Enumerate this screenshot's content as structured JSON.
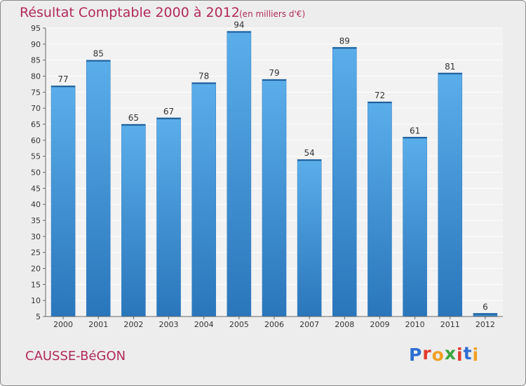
{
  "chart_data": {
    "type": "bar",
    "title": "Résultat Comptable 2000 à 2012",
    "subtitle": "(en milliers d'€)",
    "categories": [
      "2000",
      "2001",
      "2002",
      "2003",
      "2004",
      "2005",
      "2006",
      "2007",
      "2008",
      "2009",
      "2010",
      "2011",
      "2012"
    ],
    "values": [
      77,
      85,
      65,
      67,
      78,
      94,
      79,
      54,
      89,
      72,
      61,
      81,
      6
    ],
    "xlabel": "",
    "ylabel": "",
    "ylim": [
      5,
      95
    ],
    "yticks": [
      5,
      10,
      15,
      20,
      25,
      30,
      35,
      40,
      45,
      50,
      55,
      60,
      65,
      70,
      75,
      80,
      85,
      90,
      95
    ],
    "grid": true,
    "bar_color": "#3b8fd4",
    "title_color": "#b02a5a"
  },
  "commune": "CAUSSE-BéGON",
  "logo": {
    "letters": [
      "P",
      "r",
      "o",
      "x",
      "i",
      "t",
      "i"
    ],
    "colors": [
      "#2e6fd1",
      "#e23b2e",
      "#f0a020",
      "#3aa53a",
      "#e23b2e",
      "#2e6fd1",
      "#f0a020"
    ]
  }
}
